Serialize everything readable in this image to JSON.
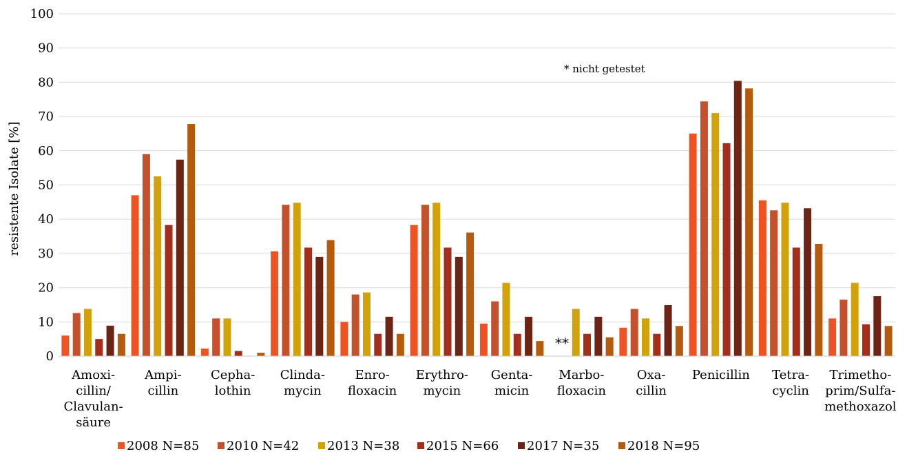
{
  "chart_data": {
    "type": "bar",
    "ylabel": "resistente Isolate [%]",
    "ylim": [
      0,
      100
    ],
    "yticks": [
      "0",
      "10",
      "20",
      "30",
      "40",
      "50",
      "60",
      "70",
      "80",
      "90",
      "100"
    ],
    "grid": true,
    "legend_position": "bottom",
    "annotation": "* nicht getestet",
    "not_tested_marker": "**",
    "categories": [
      [
        "Amoxi-",
        "cillin/",
        "Clavulan-",
        "säure"
      ],
      [
        "Ampi-",
        "cillin"
      ],
      [
        "Cepha-",
        "lothin"
      ],
      [
        "Clinda-",
        "mycin"
      ],
      [
        "Enro-",
        "floxacin"
      ],
      [
        "Erythro-",
        "mycin"
      ],
      [
        "Genta-",
        "micin"
      ],
      [
        "Marbo-",
        "floxacin"
      ],
      [
        "Oxa-",
        "cillin"
      ],
      [
        "Penicillin"
      ],
      [
        "Tetra-",
        "cyclin"
      ],
      [
        "Trimetho-",
        "prim/Sulfa-",
        "methoxazol"
      ]
    ],
    "series": [
      {
        "name": "2008  N=85",
        "color": "#EF5323",
        "values": [
          6,
          47,
          2.2,
          30.6,
          10,
          38.3,
          9.5,
          null,
          8.3,
          65,
          45.5,
          11
        ]
      },
      {
        "name": "2010  N=42",
        "color": "#C4512B",
        "values": [
          12.6,
          59,
          11,
          44.2,
          18,
          44.2,
          16,
          null,
          13.8,
          74.4,
          42.6,
          16.5
        ]
      },
      {
        "name": "2013  N=38",
        "color": "#D1A20A",
        "values": [
          13.8,
          52.5,
          11,
          44.8,
          18.6,
          44.8,
          21.4,
          13.8,
          11,
          71,
          44.8,
          21.4
        ]
      },
      {
        "name": "2015  N=66",
        "color": "#A32E1C",
        "values": [
          5,
          38.3,
          1.5,
          31.7,
          6.5,
          31.7,
          6.5,
          6.5,
          6.5,
          62.2,
          31.7,
          9.3
        ]
      },
      {
        "name": "2017  N=35",
        "color": "#6C2414",
        "values": [
          8.9,
          57.4,
          null,
          29,
          11.5,
          29,
          11.5,
          11.5,
          14.9,
          80.4,
          43.2,
          17.5
        ]
      },
      {
        "name": "2018  N=95",
        "color": "#B45B0E",
        "values": [
          6.5,
          67.8,
          1,
          33.9,
          6.5,
          36.1,
          4.4,
          5.5,
          8.8,
          78.2,
          32.8,
          8.8
        ]
      }
    ]
  }
}
